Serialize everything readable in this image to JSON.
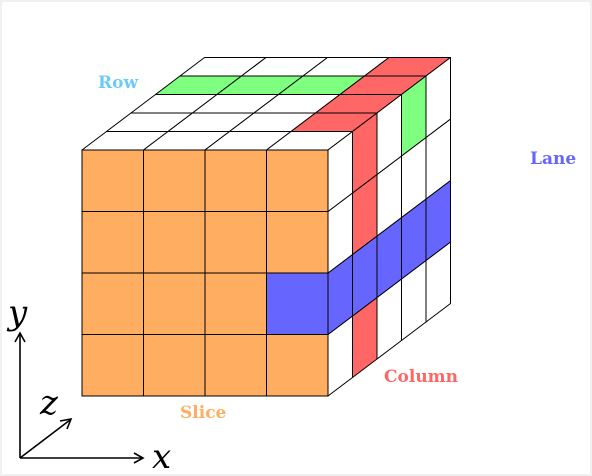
{
  "labels": {
    "row": "Row",
    "lane": "Lane",
    "column": "Column",
    "slice": "Slice"
  },
  "axes": {
    "x": "x",
    "y": "y",
    "z": "z"
  },
  "colors": {
    "slice": "#ffad60",
    "row": "#7fff7f",
    "column": "#ff6666",
    "lane": "#6666ff",
    "row_label": "#6ccbf5",
    "lane_label": "#6666ff",
    "column_label": "#ff6666",
    "slice_label": "#ffad60",
    "grid": "#000000"
  },
  "cube": {
    "nx": 4,
    "ny": 4,
    "nz": 5
  }
}
